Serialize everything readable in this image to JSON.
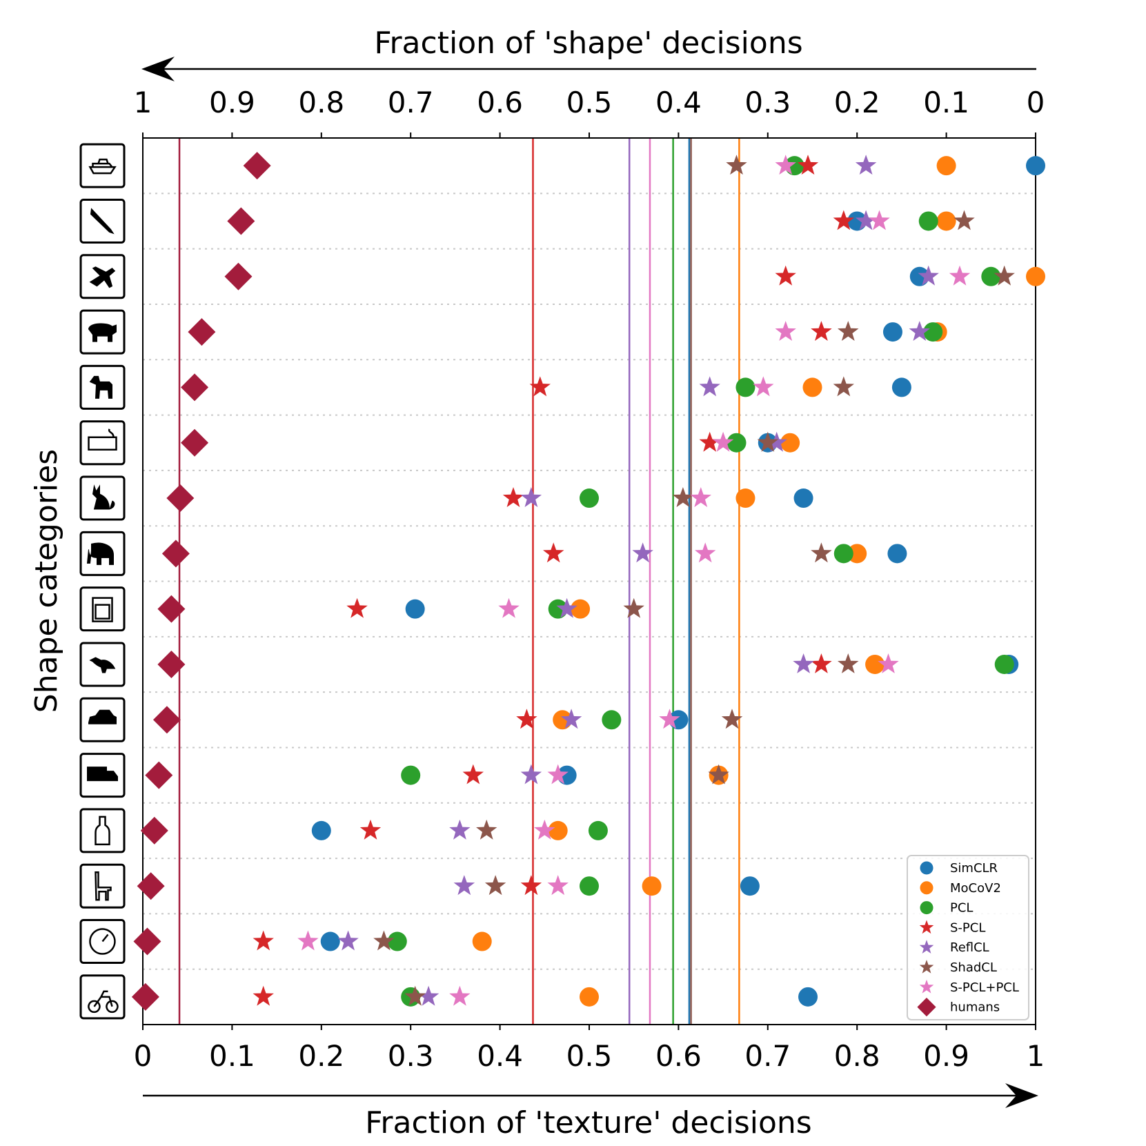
{
  "chart_data": {
    "type": "scatter",
    "xlabel_bottom": "Fraction of 'texture' decisions",
    "xlabel_top": "Fraction of 'shape' decisions",
    "ylabel": "Shape categories",
    "xlim": [
      0,
      1
    ],
    "xticks_bottom": [
      "0",
      "0.1",
      "0.2",
      "0.3",
      "0.4",
      "0.5",
      "0.6",
      "0.7",
      "0.8",
      "0.9",
      "1"
    ],
    "xticks_top": [
      "1",
      "0.9",
      "0.8",
      "0.7",
      "0.6",
      "0.5",
      "0.4",
      "0.3",
      "0.2",
      "0.1",
      "0"
    ],
    "categories": [
      "boat",
      "knife",
      "airplane",
      "bear",
      "dog",
      "keyboard",
      "cat",
      "elephant",
      "oven",
      "bird",
      "car",
      "truck",
      "bottle",
      "chair",
      "clock",
      "bicycle"
    ],
    "legend_position": "bottom-right",
    "series": [
      {
        "name": "SimCLR",
        "marker": "circle",
        "color": "#1f77b4",
        "mean": 0.612,
        "values": [
          1.0,
          0.8,
          0.87,
          0.84,
          0.85,
          0.7,
          0.74,
          0.845,
          0.305,
          0.97,
          0.6,
          0.475,
          0.2,
          0.68,
          0.21,
          0.745
        ]
      },
      {
        "name": "MoCoV2",
        "marker": "circle",
        "color": "#ff7f0e",
        "mean": 0.668,
        "values": [
          0.9,
          0.9,
          1.0,
          0.89,
          0.75,
          0.725,
          0.675,
          0.8,
          0.49,
          0.82,
          0.47,
          0.645,
          0.465,
          0.57,
          0.38,
          0.5
        ]
      },
      {
        "name": "PCL",
        "marker": "circle",
        "color": "#2ca02c",
        "mean": 0.594,
        "values": [
          0.73,
          0.88,
          0.95,
          0.885,
          0.675,
          0.665,
          0.5,
          0.785,
          0.465,
          0.965,
          0.525,
          0.3,
          0.51,
          0.5,
          0.285,
          0.3
        ]
      },
      {
        "name": "S-PCL",
        "marker": "star",
        "color": "#d62728",
        "mean": 0.437,
        "values": [
          0.745,
          0.785,
          0.72,
          0.76,
          0.445,
          0.635,
          0.415,
          0.46,
          0.24,
          0.76,
          0.43,
          0.37,
          0.255,
          0.435,
          0.135,
          0.135
        ]
      },
      {
        "name": "ReflCL",
        "marker": "star",
        "color": "#9467bd",
        "mean": 0.545,
        "values": [
          0.81,
          0.81,
          0.88,
          0.87,
          0.635,
          0.71,
          0.435,
          0.56,
          0.475,
          0.74,
          0.48,
          0.435,
          0.355,
          0.36,
          0.23,
          0.32
        ]
      },
      {
        "name": "ShadCL",
        "marker": "star",
        "color": "#8c564b",
        "mean": 0.614,
        "values": [
          0.665,
          0.92,
          0.965,
          0.79,
          0.785,
          0.7,
          0.605,
          0.76,
          0.55,
          0.79,
          0.66,
          0.645,
          0.385,
          0.395,
          0.27,
          0.305
        ]
      },
      {
        "name": "S-PCL+PCL",
        "marker": "star",
        "color": "#e377c2",
        "mean": 0.568,
        "values": [
          0.72,
          0.825,
          0.915,
          0.72,
          0.695,
          0.65,
          0.625,
          0.63,
          0.41,
          0.835,
          0.59,
          0.465,
          0.45,
          0.465,
          0.185,
          0.355
        ]
      },
      {
        "name": "humans",
        "marker": "diamond",
        "color": "#a31c3c",
        "mean": 0.041,
        "values": [
          0.128,
          0.11,
          0.107,
          0.066,
          0.058,
          0.058,
          0.042,
          0.037,
          0.032,
          0.032,
          0.027,
          0.018,
          0.013,
          0.009,
          0.005,
          0.003
        ]
      }
    ],
    "mean_lines": [
      {
        "name": "humans",
        "value": 0.041,
        "color": "#a31c3c"
      },
      {
        "name": "S-PCL",
        "value": 0.437,
        "color": "#d62728"
      },
      {
        "name": "ReflCL",
        "value": 0.545,
        "color": "#9467bd"
      },
      {
        "name": "S-PCL+PCL",
        "value": 0.568,
        "color": "#e377c2"
      },
      {
        "name": "PCL",
        "value": 0.594,
        "color": "#2ca02c"
      },
      {
        "name": "SimCLR",
        "value": 0.612,
        "color": "#1f77b4"
      },
      {
        "name": "ShadCL",
        "value": 0.614,
        "color": "#8c564b"
      },
      {
        "name": "MoCoV2",
        "value": 0.668,
        "color": "#ff7f0e"
      }
    ]
  }
}
